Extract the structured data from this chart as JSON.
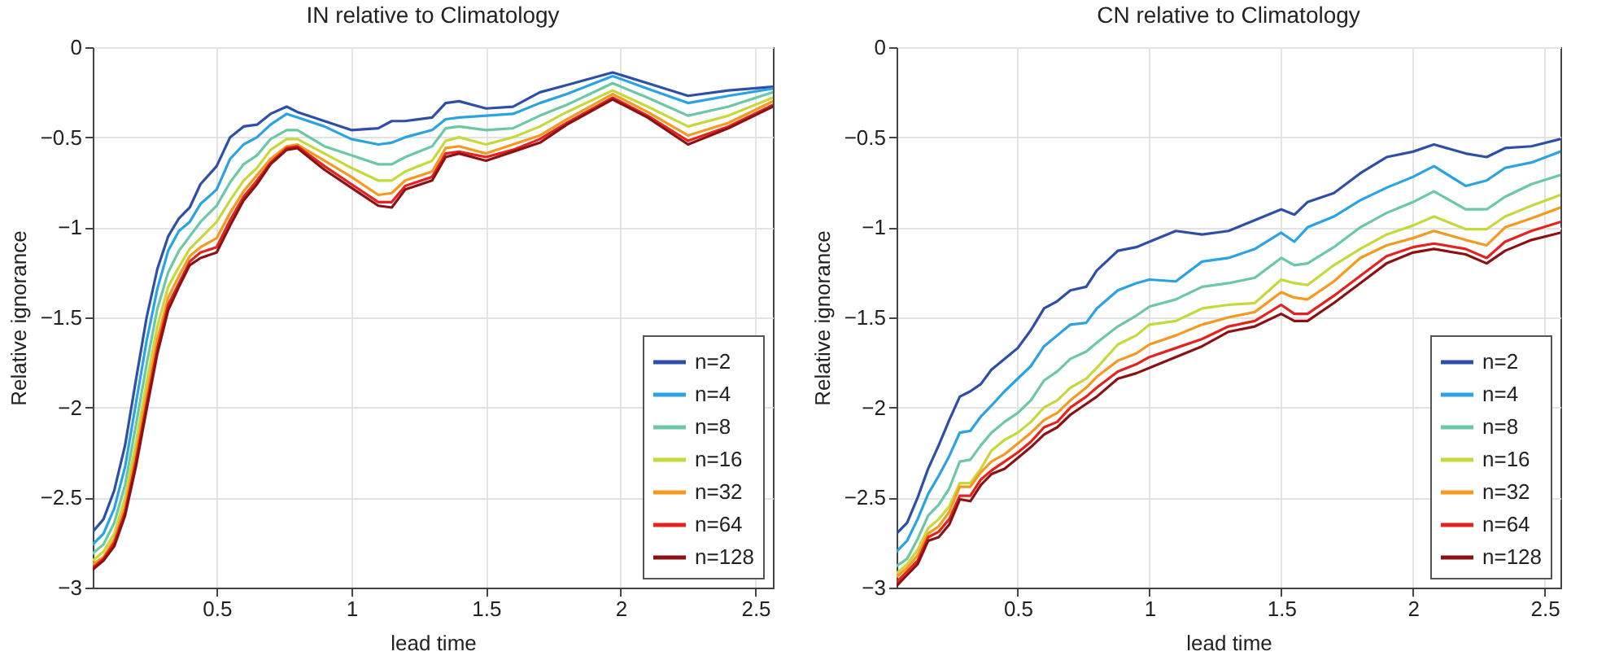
{
  "chart_data": [
    {
      "type": "line",
      "title": "IN relative to Climatology",
      "xlabel": "lead time",
      "ylabel": "Relative ignorance",
      "xlim": [
        0.04,
        2.565
      ],
      "ylim": [
        -3,
        0
      ],
      "xticks": [
        0.5,
        1,
        1.5,
        2,
        2.5
      ],
      "yticks": [
        -3,
        -2.5,
        -2,
        -1.5,
        -1,
        -0.5,
        0
      ],
      "grid": true,
      "legend": "bottom right",
      "line_style": "solid",
      "x": [
        0.04,
        0.08,
        0.12,
        0.16,
        0.2,
        0.24,
        0.28,
        0.32,
        0.36,
        0.4,
        0.44,
        0.5,
        0.55,
        0.6,
        0.65,
        0.7,
        0.76,
        0.8,
        0.9,
        1.0,
        1.1,
        1.15,
        1.2,
        1.3,
        1.35,
        1.4,
        1.5,
        1.6,
        1.7,
        1.8,
        1.97,
        2.1,
        2.25,
        2.4,
        2.565
      ],
      "series": [
        {
          "name": "n=2",
          "color": "#2e4fa8",
          "values": [
            -2.69,
            -2.62,
            -2.46,
            -2.21,
            -1.85,
            -1.5,
            -1.23,
            -1.05,
            -0.95,
            -0.89,
            -0.76,
            -0.66,
            -0.5,
            -0.44,
            -0.43,
            -0.37,
            -0.33,
            -0.36,
            -0.41,
            -0.46,
            -0.45,
            -0.41,
            -0.41,
            -0.39,
            -0.31,
            -0.3,
            -0.34,
            -0.33,
            -0.25,
            -0.21,
            -0.14,
            -0.2,
            -0.27,
            -0.24,
            -0.22
          ]
        },
        {
          "name": "n=4",
          "color": "#2aa3e2",
          "values": [
            -2.76,
            -2.7,
            -2.56,
            -2.33,
            -1.98,
            -1.63,
            -1.34,
            -1.13,
            -1.02,
            -0.97,
            -0.87,
            -0.79,
            -0.62,
            -0.54,
            -0.5,
            -0.43,
            -0.37,
            -0.39,
            -0.44,
            -0.51,
            -0.54,
            -0.53,
            -0.5,
            -0.46,
            -0.4,
            -0.39,
            -0.38,
            -0.37,
            -0.31,
            -0.26,
            -0.16,
            -0.23,
            -0.31,
            -0.27,
            -0.23
          ]
        },
        {
          "name": "n=8",
          "color": "#6cc7a4",
          "values": [
            -2.81,
            -2.76,
            -2.64,
            -2.43,
            -2.1,
            -1.76,
            -1.45,
            -1.25,
            -1.13,
            -1.05,
            -0.97,
            -0.88,
            -0.75,
            -0.65,
            -0.6,
            -0.51,
            -0.46,
            -0.46,
            -0.55,
            -0.6,
            -0.65,
            -0.65,
            -0.61,
            -0.55,
            -0.45,
            -0.44,
            -0.46,
            -0.45,
            -0.38,
            -0.32,
            -0.2,
            -0.28,
            -0.38,
            -0.33,
            -0.25
          ]
        },
        {
          "name": "n=16",
          "color": "#c6d93a",
          "values": [
            -2.85,
            -2.8,
            -2.7,
            -2.5,
            -2.2,
            -1.86,
            -1.55,
            -1.33,
            -1.22,
            -1.12,
            -1.06,
            -0.97,
            -0.85,
            -0.74,
            -0.67,
            -0.57,
            -0.51,
            -0.51,
            -0.59,
            -0.67,
            -0.74,
            -0.74,
            -0.69,
            -0.63,
            -0.52,
            -0.5,
            -0.54,
            -0.5,
            -0.44,
            -0.36,
            -0.24,
            -0.33,
            -0.44,
            -0.38,
            -0.28
          ]
        },
        {
          "name": "n=32",
          "color": "#f59a1f",
          "values": [
            -2.87,
            -2.83,
            -2.73,
            -2.55,
            -2.26,
            -1.93,
            -1.62,
            -1.39,
            -1.27,
            -1.16,
            -1.11,
            -1.06,
            -0.92,
            -0.8,
            -0.71,
            -0.62,
            -0.55,
            -0.54,
            -0.63,
            -0.72,
            -0.82,
            -0.81,
            -0.74,
            -0.69,
            -0.56,
            -0.55,
            -0.59,
            -0.54,
            -0.49,
            -0.4,
            -0.26,
            -0.36,
            -0.49,
            -0.42,
            -0.3
          ]
        },
        {
          "name": "n=64",
          "color": "#e5221e",
          "values": [
            -2.89,
            -2.84,
            -2.75,
            -2.58,
            -2.3,
            -1.98,
            -1.67,
            -1.43,
            -1.31,
            -1.19,
            -1.14,
            -1.11,
            -0.96,
            -0.83,
            -0.74,
            -0.64,
            -0.56,
            -0.55,
            -0.66,
            -0.76,
            -0.86,
            -0.86,
            -0.77,
            -0.72,
            -0.59,
            -0.58,
            -0.61,
            -0.57,
            -0.51,
            -0.42,
            -0.28,
            -0.38,
            -0.52,
            -0.44,
            -0.32
          ]
        },
        {
          "name": "n=128",
          "color": "#8a1114",
          "values": [
            -2.9,
            -2.85,
            -2.77,
            -2.6,
            -2.33,
            -2.01,
            -1.7,
            -1.46,
            -1.33,
            -1.21,
            -1.17,
            -1.14,
            -0.99,
            -0.85,
            -0.76,
            -0.65,
            -0.57,
            -0.56,
            -0.68,
            -0.78,
            -0.88,
            -0.89,
            -0.79,
            -0.74,
            -0.61,
            -0.59,
            -0.63,
            -0.58,
            -0.53,
            -0.43,
            -0.29,
            -0.39,
            -0.54,
            -0.45,
            -0.33
          ]
        }
      ]
    },
    {
      "type": "line",
      "title": "CN relative to Climatology",
      "xlabel": "lead time",
      "ylabel": "Relative ignorance",
      "xlim": [
        0.04,
        2.56
      ],
      "ylim": [
        -3,
        0
      ],
      "xticks": [
        0.5,
        1,
        1.5,
        2,
        2.5
      ],
      "yticks": [
        -3,
        -2.5,
        -2,
        -1.5,
        -1,
        -0.5,
        0
      ],
      "grid": true,
      "legend": "bottom right",
      "line_style": "solid",
      "x": [
        0.04,
        0.08,
        0.12,
        0.16,
        0.2,
        0.24,
        0.28,
        0.32,
        0.36,
        0.4,
        0.45,
        0.5,
        0.55,
        0.6,
        0.65,
        0.7,
        0.76,
        0.8,
        0.88,
        0.95,
        1.0,
        1.1,
        1.2,
        1.3,
        1.4,
        1.5,
        1.55,
        1.6,
        1.7,
        1.8,
        1.9,
        2.0,
        2.08,
        2.2,
        2.28,
        2.35,
        2.45,
        2.56
      ],
      "series": [
        {
          "name": "n=2",
          "color": "#2e4fa8",
          "values": [
            -2.7,
            -2.64,
            -2.5,
            -2.34,
            -2.21,
            -2.07,
            -1.94,
            -1.91,
            -1.87,
            -1.79,
            -1.73,
            -1.67,
            -1.57,
            -1.45,
            -1.41,
            -1.35,
            -1.33,
            -1.24,
            -1.13,
            -1.11,
            -1.08,
            -1.02,
            -1.04,
            -1.02,
            -0.96,
            -0.9,
            -0.93,
            -0.86,
            -0.81,
            -0.7,
            -0.61,
            -0.58,
            -0.54,
            -0.59,
            -0.61,
            -0.56,
            -0.55,
            -0.51
          ]
        },
        {
          "name": "n=4",
          "color": "#2aa3e2",
          "values": [
            -2.8,
            -2.74,
            -2.62,
            -2.48,
            -2.38,
            -2.27,
            -2.14,
            -2.13,
            -2.05,
            -1.99,
            -1.91,
            -1.84,
            -1.77,
            -1.66,
            -1.6,
            -1.54,
            -1.53,
            -1.45,
            -1.35,
            -1.31,
            -1.29,
            -1.3,
            -1.19,
            -1.17,
            -1.12,
            -1.03,
            -1.08,
            -1.0,
            -0.94,
            -0.85,
            -0.78,
            -0.72,
            -0.66,
            -0.77,
            -0.74,
            -0.67,
            -0.64,
            -0.58
          ]
        },
        {
          "name": "n=8",
          "color": "#6cc7a4",
          "values": [
            -2.88,
            -2.84,
            -2.73,
            -2.6,
            -2.54,
            -2.45,
            -2.3,
            -2.29,
            -2.21,
            -2.14,
            -2.08,
            -2.03,
            -1.96,
            -1.85,
            -1.8,
            -1.73,
            -1.69,
            -1.64,
            -1.55,
            -1.49,
            -1.44,
            -1.4,
            -1.33,
            -1.31,
            -1.28,
            -1.17,
            -1.21,
            -1.2,
            -1.11,
            -1.0,
            -0.92,
            -0.86,
            -0.8,
            -0.9,
            -0.9,
            -0.83,
            -0.76,
            -0.71
          ]
        },
        {
          "name": "n=16",
          "color": "#c6d93a",
          "values": [
            -2.92,
            -2.87,
            -2.79,
            -2.67,
            -2.62,
            -2.55,
            -2.42,
            -2.42,
            -2.34,
            -2.24,
            -2.18,
            -2.14,
            -2.08,
            -2.0,
            -1.96,
            -1.89,
            -1.84,
            -1.78,
            -1.65,
            -1.6,
            -1.54,
            -1.52,
            -1.45,
            -1.43,
            -1.42,
            -1.29,
            -1.31,
            -1.32,
            -1.21,
            -1.12,
            -1.04,
            -0.99,
            -0.94,
            -1.01,
            -1.01,
            -0.94,
            -0.88,
            -0.82
          ]
        },
        {
          "name": "n=32",
          "color": "#f59a1f",
          "values": [
            -2.94,
            -2.89,
            -2.82,
            -2.7,
            -2.66,
            -2.58,
            -2.44,
            -2.44,
            -2.36,
            -2.3,
            -2.26,
            -2.2,
            -2.14,
            -2.07,
            -2.03,
            -1.96,
            -1.89,
            -1.83,
            -1.74,
            -1.7,
            -1.65,
            -1.6,
            -1.54,
            -1.5,
            -1.47,
            -1.36,
            -1.39,
            -1.4,
            -1.3,
            -1.17,
            -1.1,
            -1.06,
            -1.02,
            -1.07,
            -1.1,
            -1.0,
            -0.95,
            -0.89
          ]
        },
        {
          "name": "n=64",
          "color": "#e5221e",
          "values": [
            -2.97,
            -2.91,
            -2.85,
            -2.72,
            -2.69,
            -2.62,
            -2.49,
            -2.49,
            -2.4,
            -2.35,
            -2.3,
            -2.25,
            -2.19,
            -2.11,
            -2.08,
            -2.0,
            -1.94,
            -1.89,
            -1.8,
            -1.76,
            -1.72,
            -1.67,
            -1.62,
            -1.55,
            -1.52,
            -1.43,
            -1.48,
            -1.48,
            -1.38,
            -1.27,
            -1.16,
            -1.11,
            -1.09,
            -1.12,
            -1.17,
            -1.08,
            -1.02,
            -0.97
          ]
        },
        {
          "name": "n=128",
          "color": "#8a1114",
          "values": [
            -2.99,
            -2.93,
            -2.87,
            -2.74,
            -2.72,
            -2.65,
            -2.51,
            -2.52,
            -2.43,
            -2.37,
            -2.34,
            -2.28,
            -2.22,
            -2.15,
            -2.11,
            -2.04,
            -1.98,
            -1.94,
            -1.84,
            -1.81,
            -1.78,
            -1.72,
            -1.66,
            -1.58,
            -1.55,
            -1.48,
            -1.52,
            -1.52,
            -1.42,
            -1.31,
            -1.2,
            -1.14,
            -1.12,
            -1.15,
            -1.2,
            -1.13,
            -1.07,
            -1.03
          ]
        }
      ]
    }
  ]
}
